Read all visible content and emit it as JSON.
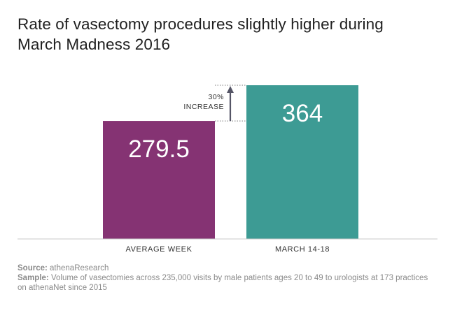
{
  "chart_data": {
    "type": "bar",
    "title": "Rate of vasectomy procedures slightly higher during March Madness 2016",
    "categories": [
      "AVERAGE WEEK",
      "MARCH 14-18"
    ],
    "values": [
      279.5,
      364
    ],
    "value_labels": [
      "279.5",
      "364"
    ],
    "colors": [
      "#853373",
      "#3d9b94"
    ],
    "ylim": [
      0,
      364
    ],
    "xlabel": "",
    "ylabel": "",
    "annotation": {
      "line1": "30%",
      "line2": "INCREASE"
    }
  },
  "footer": {
    "source_label": "Source:",
    "source_text": "athenaResearch",
    "sample_label": "Sample:",
    "sample_text": "Volume of vasectomies across 235,000 visits by male patients ages 20 to 49 to urologists at 173 practices on athenaNet since 2015"
  }
}
